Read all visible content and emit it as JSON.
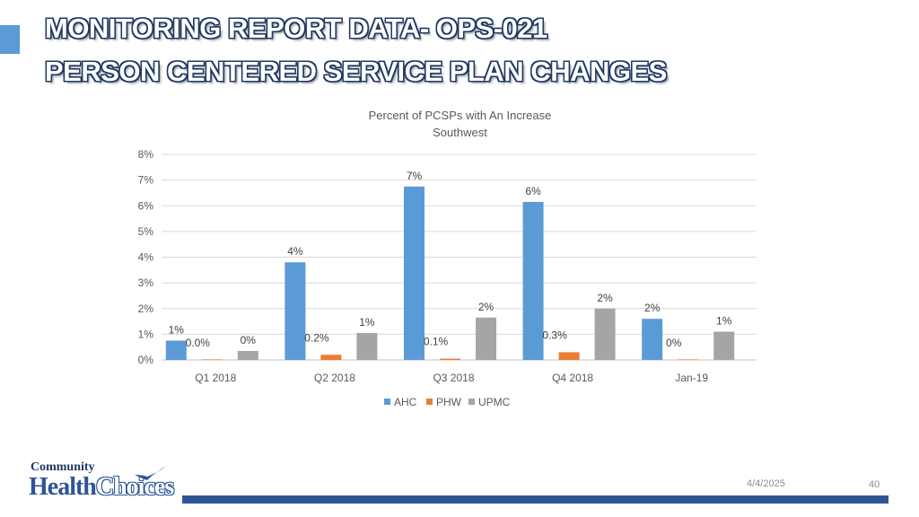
{
  "header": {
    "title_line1": "MONITORING REPORT DATA- OPS-021",
    "title_line2": "PERSON CENTERED SERVICE PLAN CHANGES"
  },
  "chart_data": {
    "type": "bar",
    "title": "Percent of PCSPs with An Increase",
    "subtitle": "Southwest",
    "categories": [
      "Q1 2018",
      "Q2 2018",
      "Q3 2018",
      "Q4 2018",
      "Jan-19"
    ],
    "ylim": [
      0,
      8
    ],
    "yticks": [
      0,
      1,
      2,
      3,
      4,
      5,
      6,
      7,
      8
    ],
    "ytick_labels": [
      "0%",
      "1%",
      "2%",
      "3%",
      "4%",
      "5%",
      "6%",
      "7%",
      "8%"
    ],
    "grid": true,
    "legend_position": "bottom",
    "series": [
      {
        "name": "AHC",
        "color": "#5b9bd5",
        "values": [
          0.75,
          3.8,
          6.75,
          6.15,
          1.6
        ],
        "labels": [
          "1%",
          "4%",
          "7%",
          "6%",
          "2%"
        ]
      },
      {
        "name": "PHW",
        "color": "#ed7d31",
        "values": [
          0.0,
          0.2,
          0.05,
          0.3,
          0.0
        ],
        "labels": [
          "0.0%",
          "0.2%",
          "0.1%",
          "0.3%",
          "0%"
        ]
      },
      {
        "name": "UPMC",
        "color": "#a5a5a5",
        "values": [
          0.35,
          1.05,
          1.65,
          2.0,
          1.1
        ],
        "labels": [
          "0%",
          "1%",
          "2%",
          "2%",
          "1%"
        ]
      }
    ]
  },
  "footer": {
    "logo_community": "Community",
    "logo_health": "Health",
    "logo_choices": "Choices",
    "date": "4/4/2025",
    "page_number": "40"
  }
}
